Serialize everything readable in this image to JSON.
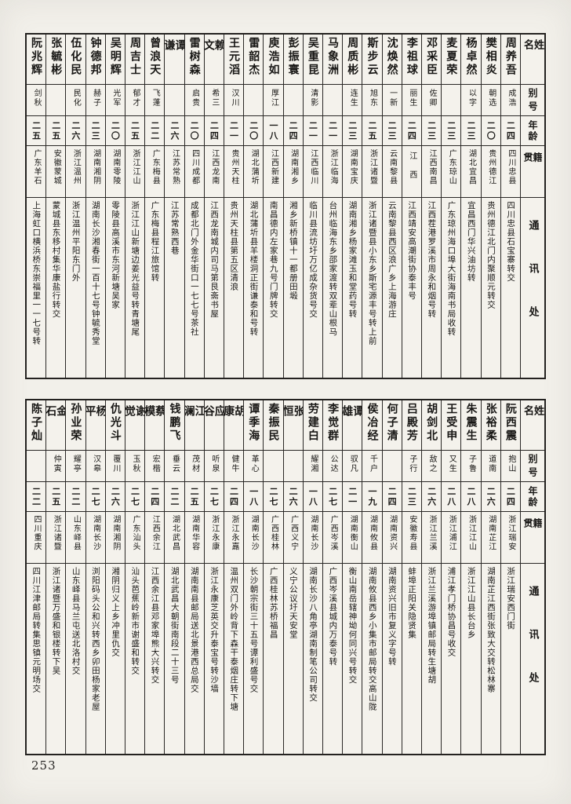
{
  "page_number": "253",
  "column_headers": {
    "name": "姓名",
    "alias": "别号",
    "age": "年龄",
    "native_place": "籍贯",
    "address": "通讯处"
  },
  "tables": [
    {
      "entries": [
        {
          "name": "周养吾",
          "alias": "成浩",
          "age": "二四",
          "native_place": "四川忠县",
          "address": "四川忠县石宝寨转交"
        },
        {
          "name": "樊相炎",
          "alias": "朝选",
          "age": "二〇",
          "native_place": "贵州德江",
          "address": "贵州德江北门内聚顺元转交"
        },
        {
          "name": "杨卓然",
          "alias": "以字",
          "age": "二三",
          "native_place": "湖北宜昌",
          "address": "宜昌西门华兴油坊转"
        },
        {
          "name": "麦夏荣",
          "alias": "",
          "age": "二三",
          "native_place": "广东琼山",
          "address": "广东琼州海口埠大街海南书局收转"
        },
        {
          "name": "邓采臣",
          "alias": "佐卿",
          "age": "二三",
          "native_place": "江西南昌",
          "address": "江西茬港罗溪市周永和烟号转"
        },
        {
          "name": "李祖球",
          "alias": "丽生",
          "age": "二四",
          "native_place": "江西",
          "address": "江西靖安高潮街协泰丰号"
        },
        {
          "name": "沈焕然",
          "alias": "一新",
          "age": "二三",
          "native_place": "云南黎县",
          "address": "云南黎县西区浪广乡上海游庄"
        },
        {
          "name": "斯步云",
          "alias": "旭东",
          "age": "二五",
          "native_place": "浙江诸暨",
          "address": "浙江诸暨县小东乡斯宅源丰号转上前"
        },
        {
          "name": "周质彬",
          "alias": "连生",
          "age": "二三",
          "native_place": "湖南宝庆",
          "address": "湖南湘乡杨家滩玉和堂药号转"
        },
        {
          "name": "马象洲",
          "alias": "",
          "age": "二一",
          "native_place": "浙江临海",
          "address": "台州临海东乡邵家渡转双辈山根马"
        },
        {
          "name": "吴重昆",
          "alias": "清影",
          "age": "二一",
          "native_place": "江西临川",
          "address": "临川县流坊圩万亿成杂货号交"
        },
        {
          "name": "彭振寰",
          "alias": "",
          "age": "二四",
          "native_place": "湖南湘乡",
          "address": "湘乡新桥镇十一都册田塅"
        },
        {
          "name": "庾浩如",
          "alias": "厚江",
          "age": "一八",
          "native_place": "江西新建",
          "address": "南昌德内左家巷九号门牌转交"
        },
        {
          "name": "雷韶杰",
          "alias": "",
          "age": "二〇",
          "native_place": "湖北蒲圻",
          "address": "湖北蒲圻县羊楼洞正街谦泰和号转"
        },
        {
          "name": "王元滔",
          "alias": "汉川",
          "age": "二一",
          "native_place": "贵州天柱",
          "address": "贵州天柱县第五区清浪"
        },
        {
          "name": "赖文",
          "alias": "希三",
          "age": "二四",
          "native_place": "江西龙南",
          "address": "江西龙南城内司马第艮斋书屋"
        },
        {
          "name": "雷树森",
          "alias": "启贵",
          "age": "二〇",
          "native_place": "四川成都",
          "address": "成都北门外金华街口一七七号茶社"
        },
        {
          "name": "谭谦",
          "alias": "",
          "age": "二六",
          "native_place": "江苏常熟",
          "address": "江苏常熟西巷"
        },
        {
          "name": "曾浪天",
          "alias": "飞蓬",
          "age": "二二",
          "native_place": "广东梅县",
          "address": "广东梅县程江旅馆转"
        },
        {
          "name": "周吉士",
          "alias": "郁才",
          "age": "二五",
          "native_place": "浙江江山",
          "address": "浙江江山新塘边姜光益号转青塘尾"
        },
        {
          "name": "吴明辉",
          "alias": "光军",
          "age": "二〇",
          "native_place": "湖南零陵",
          "address": "零陵县高溪市东河新塘吴家"
        },
        {
          "name": "钟德邦",
          "alias": "赫子",
          "age": "二三",
          "native_place": "湖南湘阴",
          "address": "湖南长沙湘春街一百十七号钟毓秀堂"
        },
        {
          "name": "伍化民",
          "alias": "民化",
          "age": "二六",
          "native_place": "浙江温州",
          "address": "浙江温州平阳东门外"
        },
        {
          "name": "张毓彬",
          "alias": "",
          "age": "二五",
          "native_place": "安徽蒙城",
          "address": "蒙城县东移村集华康盐行转交"
        },
        {
          "name": "阮兆辉",
          "alias": "剑秋",
          "age": "二五",
          "native_place": "广东羊石",
          "address": "上海虹口横浜桥东崇福里一一七号转"
        }
      ]
    },
    {
      "entries": [
        {
          "name": "阮西震",
          "alias": "抱山",
          "age": "二四",
          "native_place": "浙江瑞安",
          "address": "浙江瑞安西门街"
        },
        {
          "name": "张裕柔",
          "alias": "道南",
          "age": "二六",
          "native_place": "湖南芷江",
          "address": "湖南芷江西街张致大交转松林寨"
        },
        {
          "name": "朱震生",
          "alias": "子鲁",
          "age": "二八",
          "native_place": "浙江江山",
          "address": "浙江江山县长台乡"
        },
        {
          "name": "王受申",
          "alias": "又生",
          "age": "二八",
          "native_place": "浙江浦江",
          "address": "浦江孝门桥协昌号收交"
        },
        {
          "name": "胡剑北",
          "alias": "敌之",
          "age": "二六",
          "native_place": "浙江兰溪",
          "address": "浙江兰溪游埠镇邮局转生塘胡"
        },
        {
          "name": "吕殿芳",
          "alias": "子行",
          "age": "二三",
          "native_place": "安徽寿县",
          "address": "蚌埠正阳关隐贤集"
        },
        {
          "name": "何子清",
          "alias": "",
          "age": "二四",
          "native_place": "湖南资兴",
          "address": "湖南资兴旧市复义字号转"
        },
        {
          "name": "侯冶经",
          "alias": "千户",
          "age": "一九",
          "native_place": "湖南攸县",
          "address": "湖南攸县西乡小集市邮局转交高山陇"
        },
        {
          "name": "谭雄",
          "alias": "驭凡",
          "age": "二一",
          "native_place": "湖南衡山",
          "address": "衡山南岳辖神坳何同兴号转交"
        },
        {
          "name": "李觉群",
          "alias": "公达",
          "age": "二七",
          "native_place": "广西岑溪",
          "address": "广西岑溪县城内万泰号转"
        },
        {
          "name": "劳建白",
          "alias": "耀湘",
          "age": "一八",
          "native_place": "湖南长沙",
          "address": "湖南长沙八角亭湖南制笔公司转交"
        },
        {
          "name": "张恒",
          "alias": "",
          "age": "二六",
          "native_place": "广西义宁",
          "address": "义宁公议圩天安堂"
        },
        {
          "name": "秦振民",
          "alias": "",
          "age": "二七",
          "native_place": "广西桂林",
          "address": "广西桂林苏桥福昌"
        },
        {
          "name": "谭季海",
          "alias": "革心",
          "age": "一八",
          "native_place": "湖南长沙",
          "address": "长沙朝宗街三十五号谭利盛号交"
        },
        {
          "name": "胡康",
          "alias": "健牛",
          "age": "二四",
          "native_place": "浙江永嘉",
          "address": "温州双门外岭背下森干泰烟庄转下塘"
        },
        {
          "name": "应谷",
          "alias": "听泉",
          "age": "二七",
          "native_place": "浙江永康",
          "address": "浙江永康芝英交升泰宝号转沙墙"
        },
        {
          "name": "江澜",
          "alias": "茂材",
          "age": "二五",
          "native_place": "湖南华容",
          "address": "湖南南县邮局送北景港西总局交"
        },
        {
          "name": "钱鹏飞",
          "alias": "垂云",
          "age": "二二",
          "native_place": "湖北武昌",
          "address": "湖北武昌大朝街南段二十三号"
        },
        {
          "name": "蔡模",
          "alias": "宏楷",
          "age": "二四",
          "native_place": "江西余江",
          "address": "江西余江县邓家埠熊大兴转交"
        },
        {
          "name": "谢觉",
          "alias": "玉秋",
          "age": "二七",
          "native_place": "广东汕头",
          "address": "汕头芭蕉岭新市谢盛和转交"
        },
        {
          "name": "仇光斗",
          "alias": "覆川",
          "age": "二六",
          "native_place": "湖南湘阴",
          "address": "湘阴归义上乡冲里仇交"
        },
        {
          "name": "杨平",
          "alias": "汉皋",
          "age": "二七",
          "native_place": "湖南长沙",
          "address": "浏阳码头公和兴转西乡卯田杨家老屋"
        },
        {
          "name": "孙业荣",
          "alias": "耀亭",
          "age": "二二",
          "native_place": "山东峄县",
          "address": "山东峄县马兰屯送北洛村交"
        },
        {
          "name": "金石",
          "alias": "仲寅",
          "age": "二五",
          "native_place": "浙江诸暨",
          "address": "浙江诸暨万盛和银楼转下吴"
        },
        {
          "name": "陈子灿",
          "alias": "",
          "age": "二二",
          "native_place": "四川重庆",
          "address": "四川江津邮局转集思镇元明场交"
        }
      ]
    }
  ]
}
